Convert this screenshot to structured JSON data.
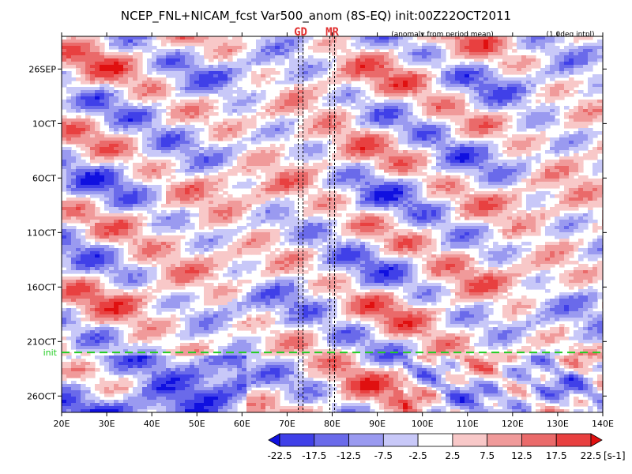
{
  "chart_data": {
    "type": "heatmap",
    "title": "NCEP_FNL+NICAM_fcst Var500_anom (8S-EQ) init:00Z22OCT2011",
    "subtitle_left": "(anomaly from period mean)",
    "subtitle_right": "(1.0deg intpl)",
    "x_ticks": [
      "20E",
      "30E",
      "40E",
      "50E",
      "60E",
      "70E",
      "80E",
      "90E",
      "100E",
      "110E",
      "120E",
      "130E",
      "140E"
    ],
    "x_range": [
      20,
      140
    ],
    "y_ticks": [
      "26SEP",
      "1OCT",
      "6OCT",
      "11OCT",
      "16OCT",
      "21OCT",
      "26OCT"
    ],
    "y_tick_days": [
      0,
      5,
      10,
      15,
      20,
      25,
      30
    ],
    "y_range_days": [
      -3,
      31.5
    ],
    "markers": [
      {
        "label": "GD",
        "lon": 73
      },
      {
        "label": "MR",
        "lon": 80
      }
    ],
    "init_line": {
      "label": "init",
      "day": 26
    },
    "colorbar": {
      "levels": [
        "-22.5",
        "-17.5",
        "-12.5",
        "-7.5",
        "-2.5",
        "2.5",
        "7.5",
        "12.5",
        "17.5",
        "22.5"
      ],
      "colors": [
        "#1010e0",
        "#4040e8",
        "#6a6aea",
        "#9a9af0",
        "#c8c8f8",
        "#ffffff",
        "#f8c8c8",
        "#f09a9a",
        "#ea6a6a",
        "#e84040",
        "#e01010"
      ],
      "unit": "[s-1]"
    }
  }
}
